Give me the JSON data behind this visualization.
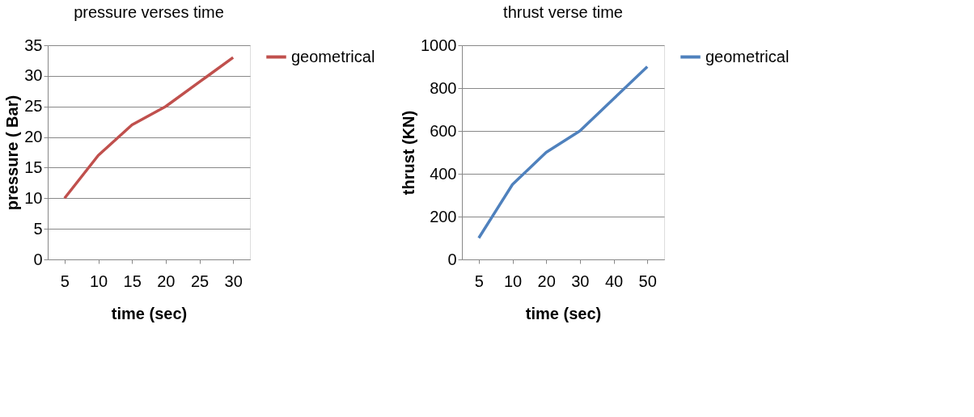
{
  "chart_data": [
    {
      "type": "line",
      "title": "pressure verses time",
      "xlabel": "time (sec)",
      "ylabel": "pressure ( Bar)",
      "categories": [
        "5",
        "10",
        "15",
        "20",
        "25",
        "30"
      ],
      "series": [
        {
          "name": "geometrical",
          "color": "#c0504d",
          "values": [
            10,
            17,
            22,
            25,
            29,
            33
          ]
        }
      ],
      "ylim": [
        0,
        35
      ],
      "yticks": [
        0,
        5,
        10,
        15,
        20,
        25,
        30,
        35
      ],
      "grid": "y",
      "legend": "right",
      "marker": "none",
      "line_style": "solid"
    },
    {
      "type": "line",
      "title": "thrust verse time",
      "xlabel": "time (sec)",
      "ylabel": "thrust (KN)",
      "categories": [
        "5",
        "10",
        "20",
        "30",
        "40",
        "50"
      ],
      "series": [
        {
          "name": "geometrical",
          "color": "#4f81bd",
          "values": [
            100,
            350,
            500,
            600,
            750,
            900
          ]
        }
      ],
      "ylim": [
        0,
        1000
      ],
      "yticks": [
        0,
        200,
        400,
        600,
        800,
        1000
      ],
      "grid": "y",
      "legend": "right",
      "marker": "none",
      "line_style": "solid"
    }
  ]
}
